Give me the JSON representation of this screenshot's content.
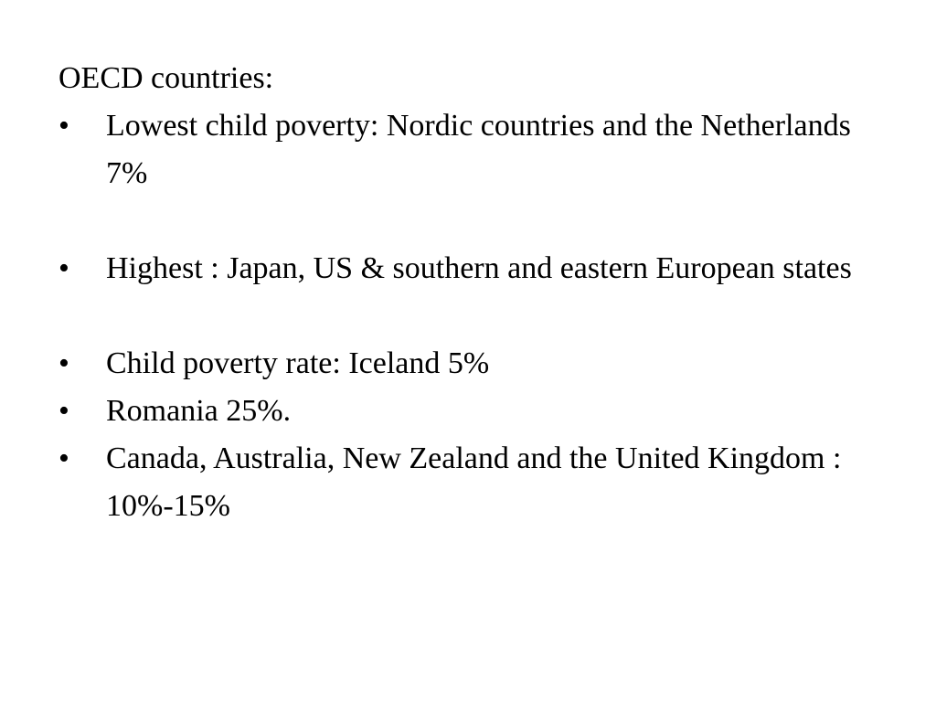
{
  "slide": {
    "heading": "OECD countries:",
    "bullet_glyph": "•",
    "bullets": [
      {
        "text": "Lowest child poverty: Nordic countries and the Netherlands 7%"
      },
      {
        "text": "Highest : Japan, US & southern and eastern European states"
      },
      {
        "text": "Child poverty rate: Iceland 5%"
      },
      {
        "text": "Romania 25%."
      },
      {
        "text": "Canada, Australia, New Zealand and the United Kingdom : 10%-15%"
      }
    ]
  }
}
